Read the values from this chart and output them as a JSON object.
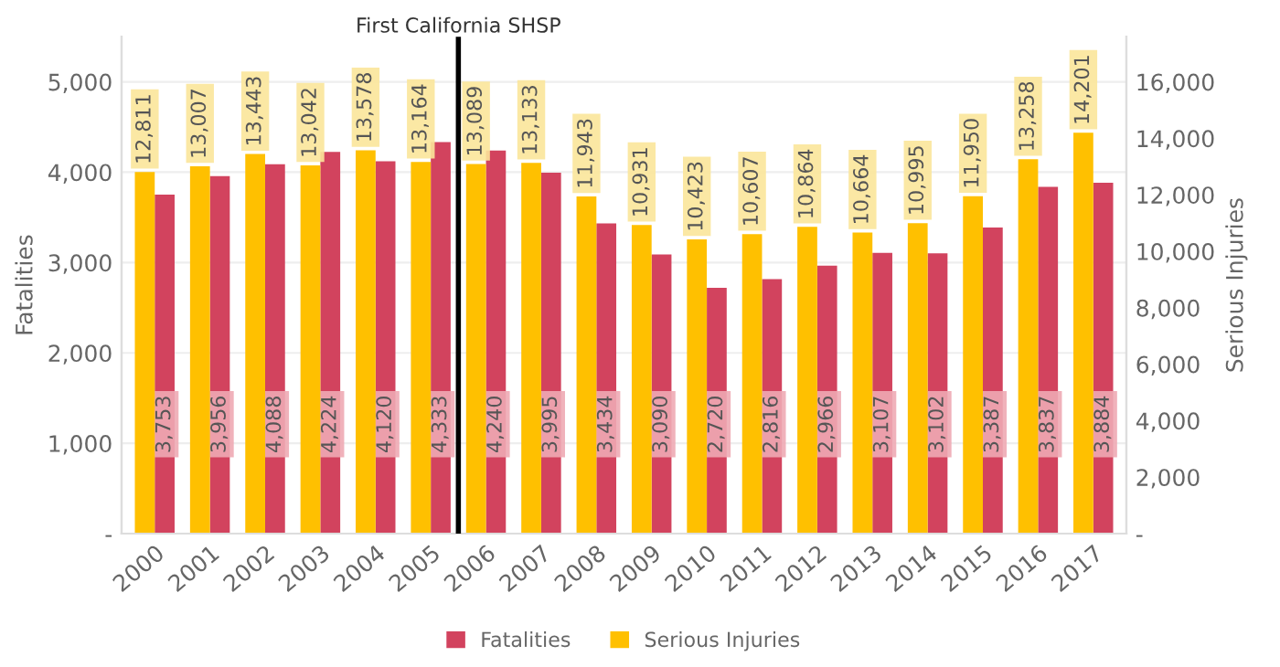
{
  "chart_data": {
    "type": "bar",
    "categories": [
      "2000",
      "2001",
      "2002",
      "2003",
      "2004",
      "2005",
      "2006",
      "2007",
      "2008",
      "2009",
      "2010",
      "2011",
      "2012",
      "2013",
      "2014",
      "2015",
      "2016",
      "2017"
    ],
    "series": [
      {
        "name": "Fatalities",
        "color": "#d2435e",
        "values": [
          3753,
          3956,
          4088,
          4224,
          4120,
          4333,
          4240,
          3995,
          3434,
          3090,
          2720,
          2816,
          2966,
          3107,
          3102,
          3387,
          3837,
          3884
        ],
        "value_labels": [
          "3,753",
          "3,956",
          "4,088",
          "4,224",
          "4,120",
          "4,333",
          "4,240",
          "3,995",
          "3,434",
          "3,090",
          "2,720",
          "2,816",
          "2,966",
          "3,107",
          "3,102",
          "3,387",
          "3,837",
          "3,884"
        ]
      },
      {
        "name": "Serious Injuries",
        "color": "#ffc000",
        "axis": "y2",
        "values": [
          12811,
          13007,
          13443,
          13042,
          13578,
          13164,
          13089,
          13133,
          11943,
          10931,
          10423,
          10607,
          10864,
          10664,
          10995,
          11950,
          13258,
          14201
        ],
        "value_labels": [
          "12,811",
          "13,007",
          "13,443",
          "13,042",
          "13,578",
          "13,164",
          "13,089",
          "13,133",
          "11,943",
          "10,931",
          "10,423",
          "10,607",
          "10,864",
          "10,664",
          "10,995",
          "11,950",
          "13,258",
          "14,201"
        ]
      }
    ],
    "ylabel": "Fatalities",
    "y2label": "Serious Injuries",
    "ylim": [
      0,
      5500
    ],
    "yticks": [
      {
        "value": 0,
        "label": "-"
      },
      {
        "value": 1000,
        "label": "1,000"
      },
      {
        "value": 2000,
        "label": "2,000"
      },
      {
        "value": 3000,
        "label": "3,000"
      },
      {
        "value": 4000,
        "label": "4,000"
      },
      {
        "value": 5000,
        "label": "5,000"
      }
    ],
    "y2lim": [
      0,
      17600
    ],
    "y2ticks": [
      {
        "value": 0,
        "label": "-"
      },
      {
        "value": 2000,
        "label": "2,000"
      },
      {
        "value": 4000,
        "label": "4,000"
      },
      {
        "value": 6000,
        "label": "6,000"
      },
      {
        "value": 8000,
        "label": "8,000"
      },
      {
        "value": 10000,
        "label": "10,000"
      },
      {
        "value": 12000,
        "label": "12,000"
      },
      {
        "value": 14000,
        "label": "14,000"
      },
      {
        "value": 16000,
        "label": "16,000"
      }
    ],
    "ref_lines": [
      {
        "axis": "x",
        "value": "2006",
        "label": "First California SHSP",
        "color": "#000000"
      }
    ],
    "grid": "y",
    "legend": "bottom"
  }
}
